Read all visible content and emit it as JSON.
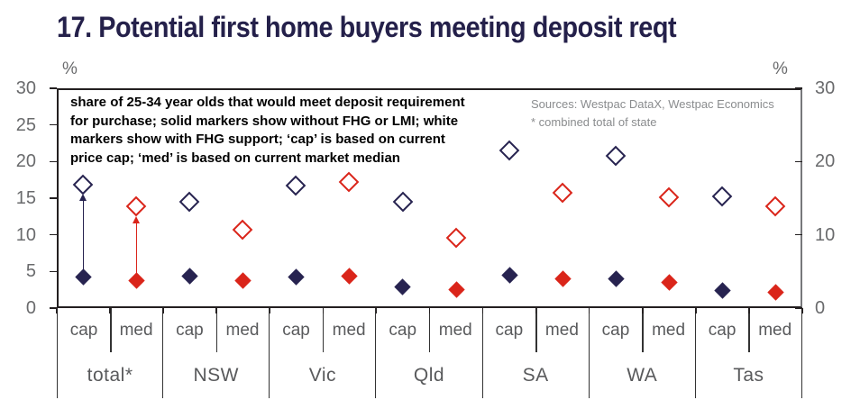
{
  "title": "17. Potential first home buyers meeting deposit reqt",
  "annotation": "share of 25-34 year olds that would meet deposit requirement\nfor purchase; solid markers show without FHG or LMI; white\nmarkers show with FHG support; ‘cap’ is based on current\nprice cap; ‘med’ is based on current market median",
  "sources": "Sources: Westpac DataX, Westpac Economics\n* combined total of state",
  "chart_data": {
    "type": "scatter",
    "title": "17. Potential first home buyers meeting deposit reqt",
    "ylabel_left": "%",
    "ylabel_right": "%",
    "ylim": [
      0,
      30
    ],
    "yticks_left": [
      0,
      5,
      10,
      15,
      20,
      25,
      30
    ],
    "yticks_right": [
      0,
      10,
      20,
      30
    ],
    "grid": false,
    "marker_legend": {
      "solid": "without FHG or LMI",
      "open": "with FHG support"
    },
    "colors": {
      "navy": "#272350",
      "red": "#DA251A"
    },
    "columns": [
      {
        "state": "total*",
        "sub": "cap",
        "color_key": "navy",
        "solid": 4.2,
        "open": 16.8
      },
      {
        "state": "total*",
        "sub": "med",
        "color_key": "red",
        "solid": 3.7,
        "open": 13.8
      },
      {
        "state": "NSW",
        "sub": "cap",
        "color_key": "navy",
        "solid": 4.4,
        "open": 14.4
      },
      {
        "state": "NSW",
        "sub": "med",
        "color_key": "red",
        "solid": 3.7,
        "open": 10.6
      },
      {
        "state": "Vic",
        "sub": "cap",
        "color_key": "navy",
        "solid": 4.3,
        "open": 16.7
      },
      {
        "state": "Vic",
        "sub": "med",
        "color_key": "red",
        "solid": 4.4,
        "open": 17.2
      },
      {
        "state": "Qld",
        "sub": "cap",
        "color_key": "navy",
        "solid": 2.9,
        "open": 14.5
      },
      {
        "state": "Qld",
        "sub": "med",
        "color_key": "red",
        "solid": 2.5,
        "open": 9.6
      },
      {
        "state": "SA",
        "sub": "cap",
        "color_key": "navy",
        "solid": 4.5,
        "open": 21.5
      },
      {
        "state": "SA",
        "sub": "med",
        "color_key": "red",
        "solid": 4.0,
        "open": 15.7
      },
      {
        "state": "WA",
        "sub": "cap",
        "color_key": "navy",
        "solid": 4.0,
        "open": 20.7
      },
      {
        "state": "WA",
        "sub": "med",
        "color_key": "red",
        "solid": 3.5,
        "open": 15.1
      },
      {
        "state": "Tas",
        "sub": "cap",
        "color_key": "navy",
        "solid": 2.4,
        "open": 15.2
      },
      {
        "state": "Tas",
        "sub": "med",
        "color_key": "red",
        "solid": 2.2,
        "open": 13.8
      }
    ],
    "arrows": [
      {
        "column_index": 0,
        "from": 5.3,
        "to": 15.6,
        "color_key": "navy"
      },
      {
        "column_index": 1,
        "from": 4.8,
        "to": 12.6,
        "color_key": "red"
      }
    ]
  }
}
